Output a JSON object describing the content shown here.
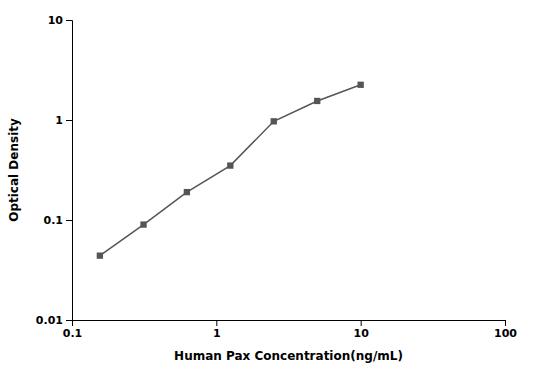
{
  "chart_data": {
    "type": "line",
    "x": [
      0.156,
      0.313,
      0.625,
      1.25,
      2.5,
      5.0,
      10.0
    ],
    "values": [
      0.044,
      0.09,
      0.19,
      0.35,
      0.97,
      1.55,
      2.25
    ],
    "xlabel": "Human Pax Concentration(ng/mL)",
    "ylabel": "Optical Density",
    "xlim": [
      0.1,
      100
    ],
    "ylim": [
      0.01,
      10
    ],
    "xticks": [
      0.1,
      1,
      10,
      100
    ],
    "yticks": [
      0.01,
      0.1,
      1,
      10
    ],
    "log": true,
    "grid": false,
    "marker": "square",
    "color": "#555555"
  }
}
